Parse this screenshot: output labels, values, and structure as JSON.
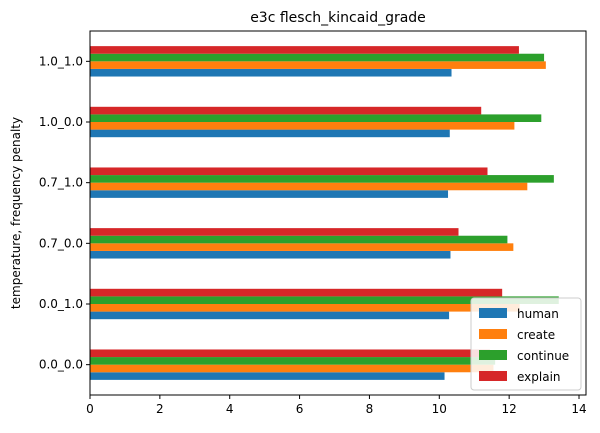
{
  "chart_data": {
    "type": "bar",
    "orientation": "horizontal",
    "title": "e3c flesch_kincaid_grade",
    "xlabel": "",
    "ylabel": "temperature, frequency penalty",
    "categories": [
      "0.0_0.0",
      "0.0_1.0",
      "0.7_0.0",
      "0.7_1.0",
      "1.0_0.0",
      "1.0_1.0"
    ],
    "series": [
      {
        "name": "human",
        "color": "#1f77b4",
        "values": [
          10.15,
          10.28,
          10.32,
          10.25,
          10.3,
          10.35
        ]
      },
      {
        "name": "create",
        "color": "#ff7f0e",
        "values": [
          11.55,
          12.3,
          12.12,
          12.52,
          12.15,
          13.05
        ]
      },
      {
        "name": "continue",
        "color": "#2ca02c",
        "values": [
          11.6,
          13.42,
          11.95,
          13.28,
          12.92,
          13.0
        ]
      },
      {
        "name": "explain",
        "color": "#d62728",
        "values": [
          11.45,
          11.8,
          10.55,
          11.38,
          11.2,
          12.28
        ]
      }
    ],
    "xlim": [
      0,
      14.2
    ],
    "xticks": [
      0,
      2,
      4,
      6,
      8,
      10,
      12,
      14
    ],
    "grid": false,
    "legend": "lower-right"
  }
}
